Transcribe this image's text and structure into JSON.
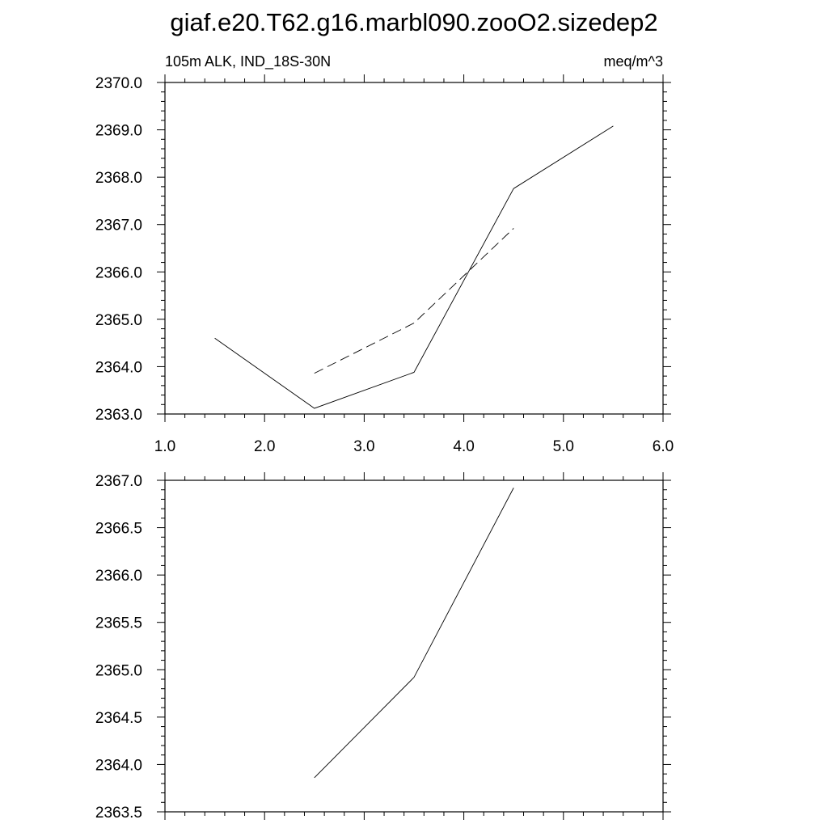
{
  "figure": {
    "title": "giaf.e20.T62.g16.marbl090.zooO2.sizedep2"
  },
  "chart_data": [
    {
      "type": "line",
      "subtitle_left": "105m ALK, IND_18S-30N",
      "subtitle_right": "meq/m^3",
      "xlim": [
        1.0,
        6.0
      ],
      "ylim": [
        2363.0,
        2370.0
      ],
      "xticks": [
        "1.0",
        "2.0",
        "3.0",
        "4.0",
        "5.0",
        "6.0"
      ],
      "yticks": [
        "2363.0",
        "2364.0",
        "2365.0",
        "2366.0",
        "2367.0",
        "2368.0",
        "2369.0",
        "2370.0"
      ],
      "grid": false,
      "series": [
        {
          "style": "solid",
          "color": "#000000",
          "x": [
            1.5,
            2.5,
            3.5,
            4.5,
            5.5
          ],
          "y": [
            2364.6,
            2363.12,
            2363.88,
            2367.76,
            2369.08
          ]
        },
        {
          "style": "dashed",
          "color": "#000000",
          "x": [
            2.5,
            3.5,
            4.5
          ],
          "y": [
            2363.86,
            2364.92,
            2366.92
          ]
        }
      ]
    },
    {
      "type": "line",
      "xlim": [
        1.0,
        6.0
      ],
      "ylim": [
        2363.5,
        2367.0
      ],
      "xticks": [],
      "yticks": [
        "2363.5",
        "2364.0",
        "2364.5",
        "2365.0",
        "2365.5",
        "2366.0",
        "2366.5",
        "2367.0"
      ],
      "grid": false,
      "series": [
        {
          "style": "solid",
          "color": "#000000",
          "x": [
            2.5,
            3.5,
            4.5
          ],
          "y": [
            2363.86,
            2364.92,
            2366.92
          ]
        }
      ]
    }
  ]
}
